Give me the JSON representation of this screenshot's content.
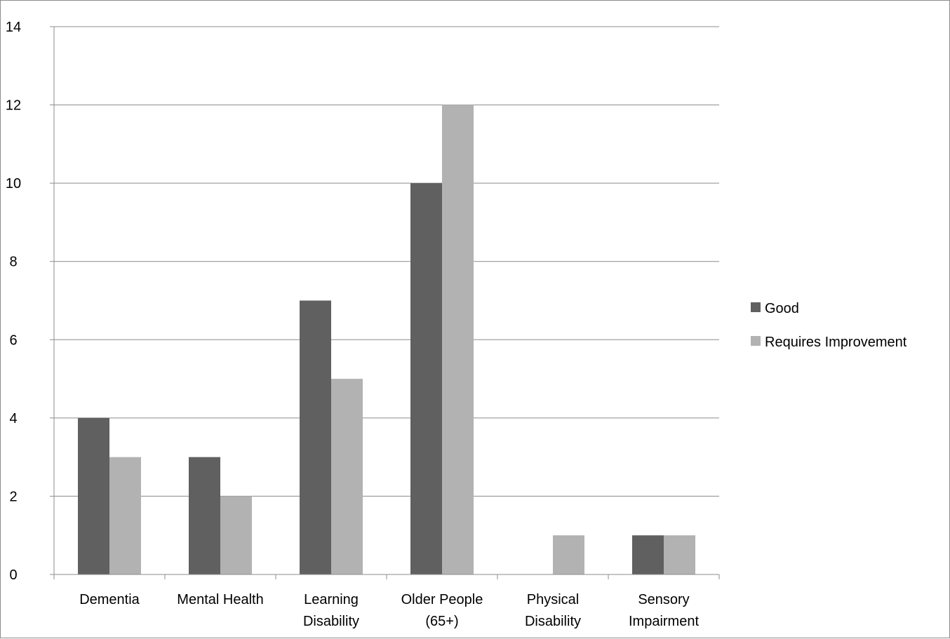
{
  "chart_data": {
    "type": "bar",
    "categories": [
      [
        "Dementia"
      ],
      [
        "Mental Health"
      ],
      [
        "Learning",
        "Disability"
      ],
      [
        "Older People",
        "(65+)"
      ],
      [
        "Physical",
        "Disability"
      ],
      [
        "Sensory",
        "Impairment"
      ]
    ],
    "series": [
      {
        "name": "Good",
        "color": "#606060",
        "values": [
          4,
          3,
          7,
          10,
          0,
          1
        ]
      },
      {
        "name": "Requires Improvement",
        "color": "#b2b2b2",
        "values": [
          3,
          2,
          5,
          12,
          1,
          1
        ]
      }
    ],
    "ylim": [
      0,
      14
    ],
    "yticks": [
      0,
      2,
      4,
      6,
      8,
      10,
      12,
      14
    ],
    "grid": true,
    "legend_position": "right",
    "title": "",
    "xlabel": "",
    "ylabel": ""
  }
}
